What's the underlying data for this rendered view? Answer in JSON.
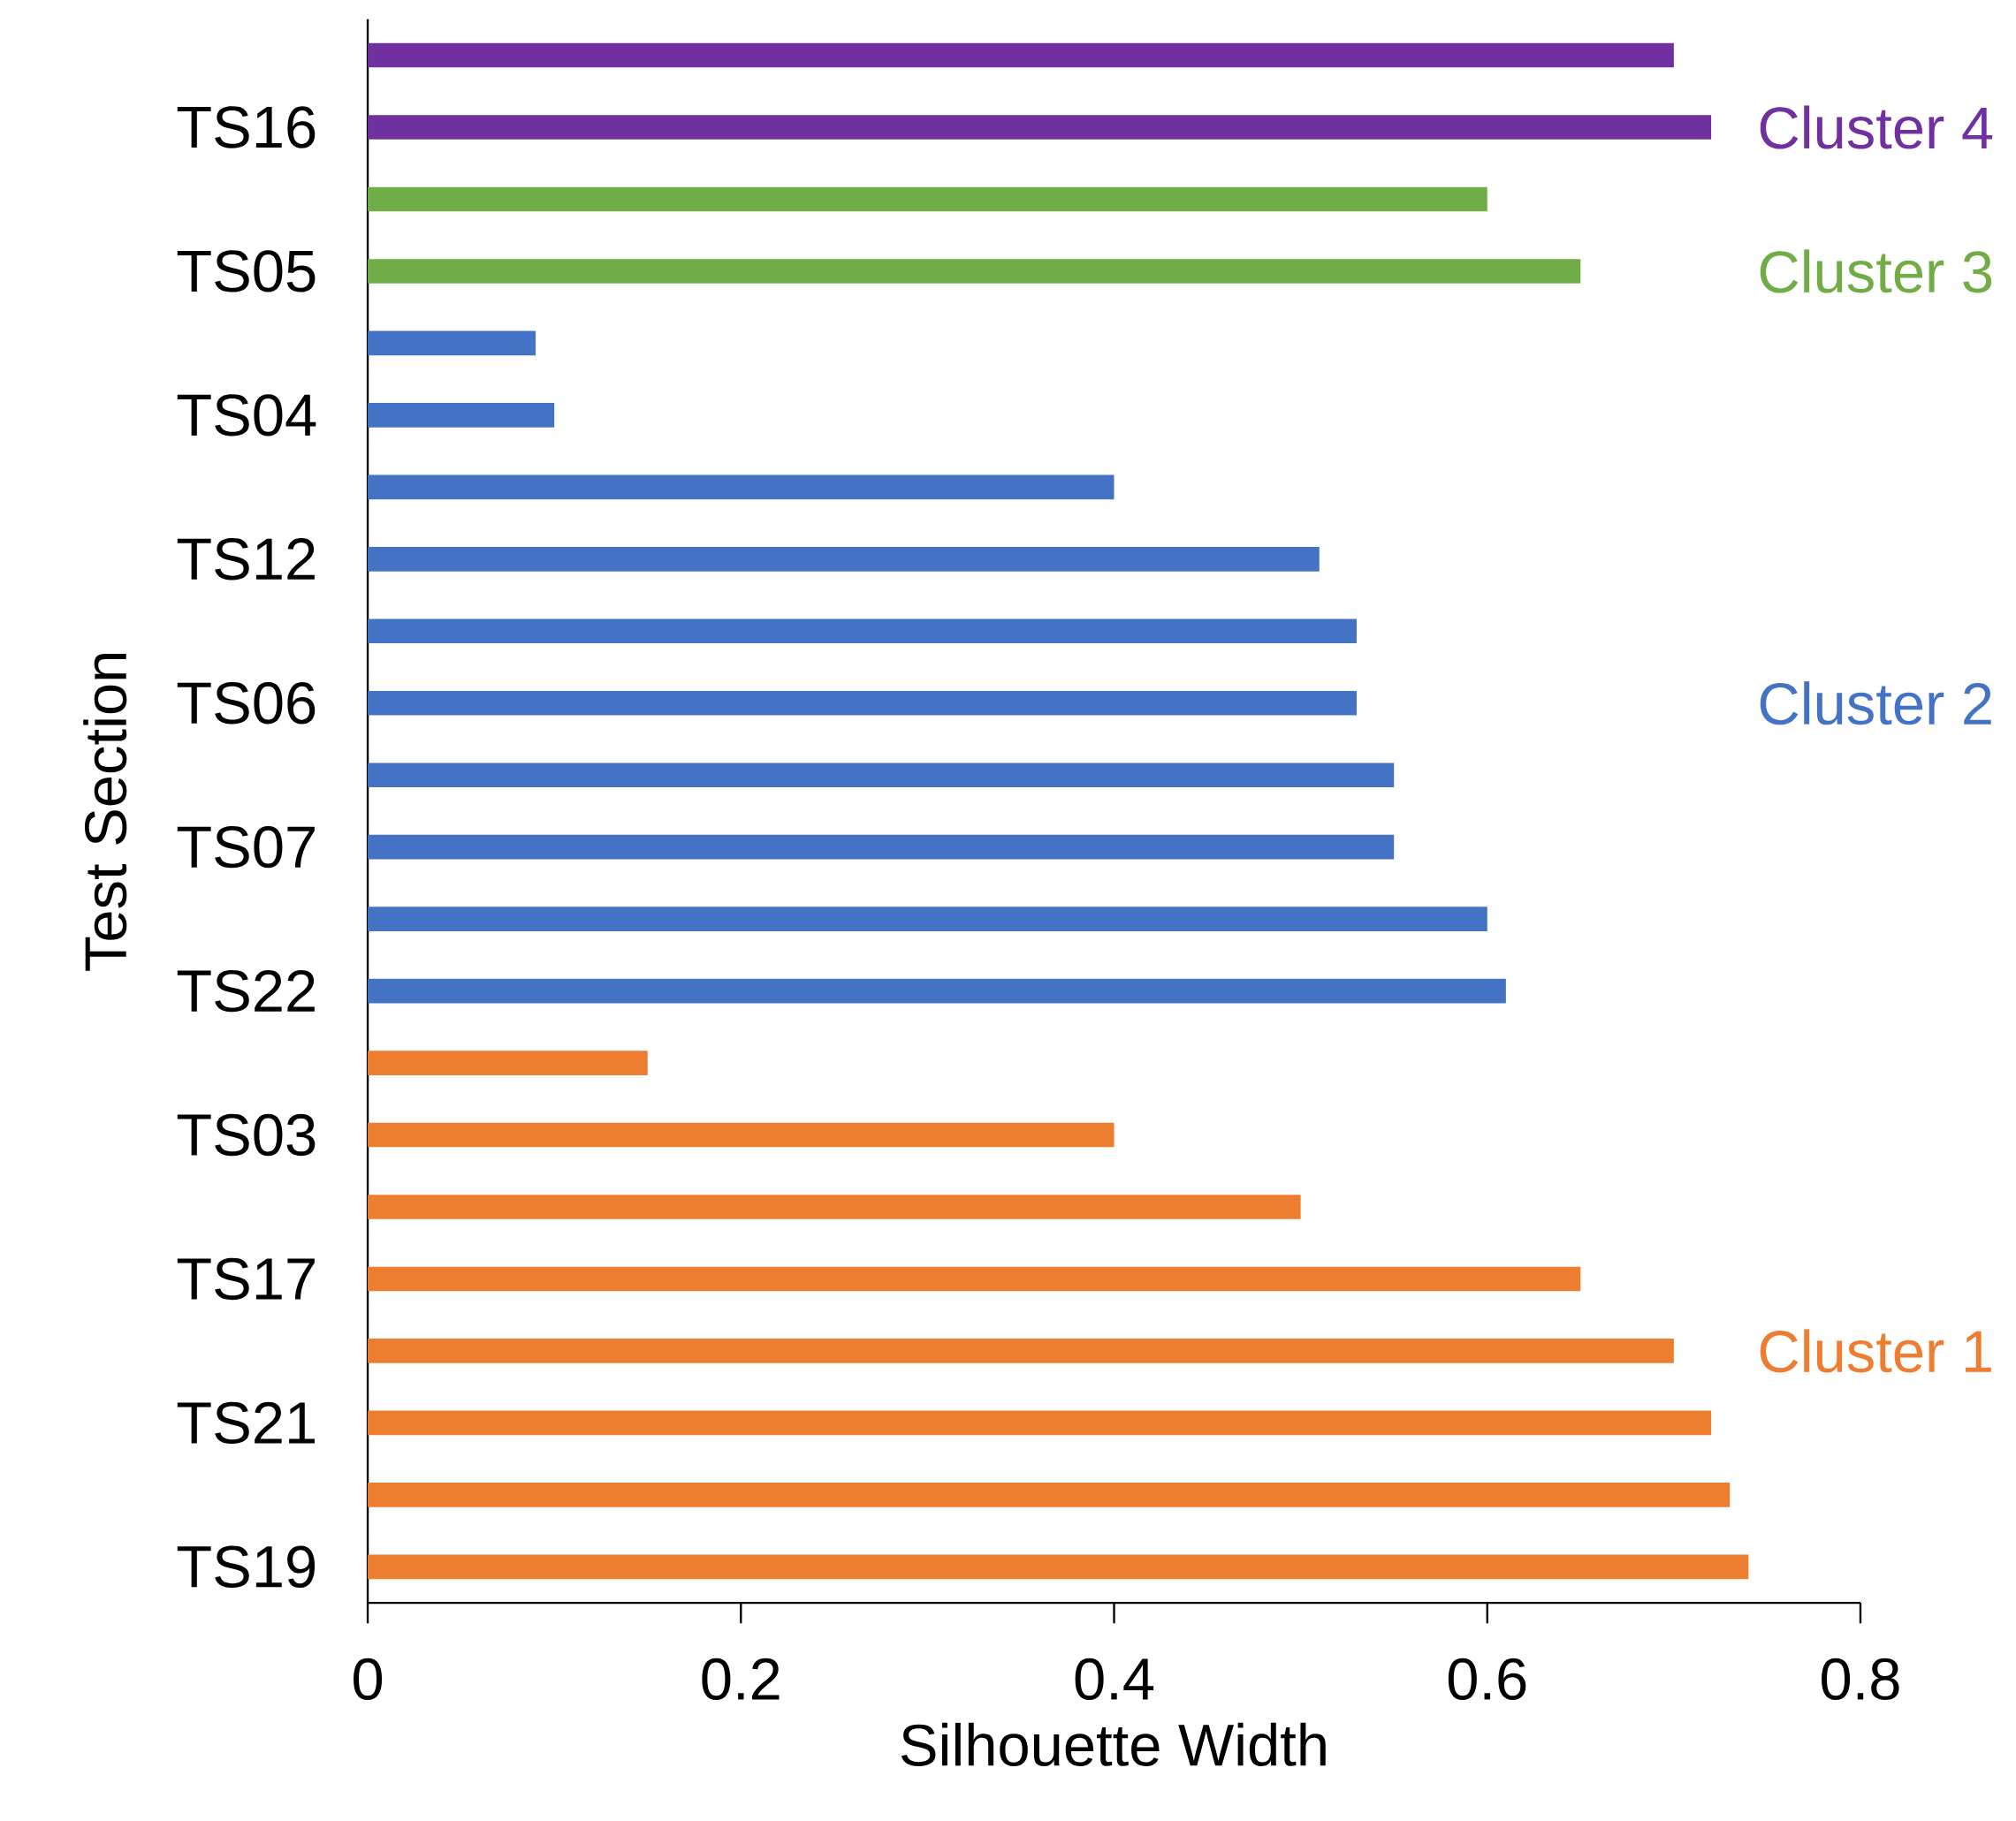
{
  "chart_data": {
    "type": "bar",
    "orientation": "horizontal",
    "categories": [
      null,
      "TS16",
      null,
      "TS05",
      null,
      "TS04",
      null,
      "TS12",
      null,
      "TS06",
      null,
      "TS07",
      null,
      "TS22",
      null,
      "TS03",
      null,
      "TS17",
      null,
      "TS21",
      null,
      "TS19"
    ],
    "series": [
      {
        "name": "Cluster 4",
        "color": "#7030a0",
        "values": [
          0.7,
          0.72,
          null,
          null,
          null,
          null,
          null,
          null,
          null,
          null,
          null,
          null,
          null,
          null,
          null,
          null,
          null,
          null,
          null,
          null,
          null,
          null
        ]
      },
      {
        "name": "Cluster 3",
        "color": "#70ad47",
        "values": [
          null,
          null,
          0.6,
          0.65,
          null,
          null,
          null,
          null,
          null,
          null,
          null,
          null,
          null,
          null,
          null,
          null,
          null,
          null,
          null,
          null,
          null,
          null
        ]
      },
      {
        "name": "Cluster 2",
        "color": "#4472c4",
        "values": [
          null,
          null,
          null,
          null,
          0.09,
          0.1,
          0.4,
          0.51,
          0.53,
          0.53,
          0.55,
          0.55,
          0.6,
          0.61,
          null,
          null,
          null,
          null,
          null,
          null,
          null,
          null
        ]
      },
      {
        "name": "Cluster 1",
        "color": "#ed7d31",
        "values": [
          null,
          null,
          null,
          null,
          null,
          null,
          null,
          null,
          null,
          null,
          null,
          null,
          null,
          null,
          0.15,
          0.4,
          0.5,
          0.65,
          0.7,
          0.72,
          0.73,
          0.74
        ]
      }
    ],
    "xlabel": "Silhouette Width",
    "ylabel": "Test Section",
    "xlim": [
      0,
      0.8
    ],
    "xticks": [
      0,
      0.2,
      0.4,
      0.6,
      0.8
    ],
    "grid": false
  }
}
